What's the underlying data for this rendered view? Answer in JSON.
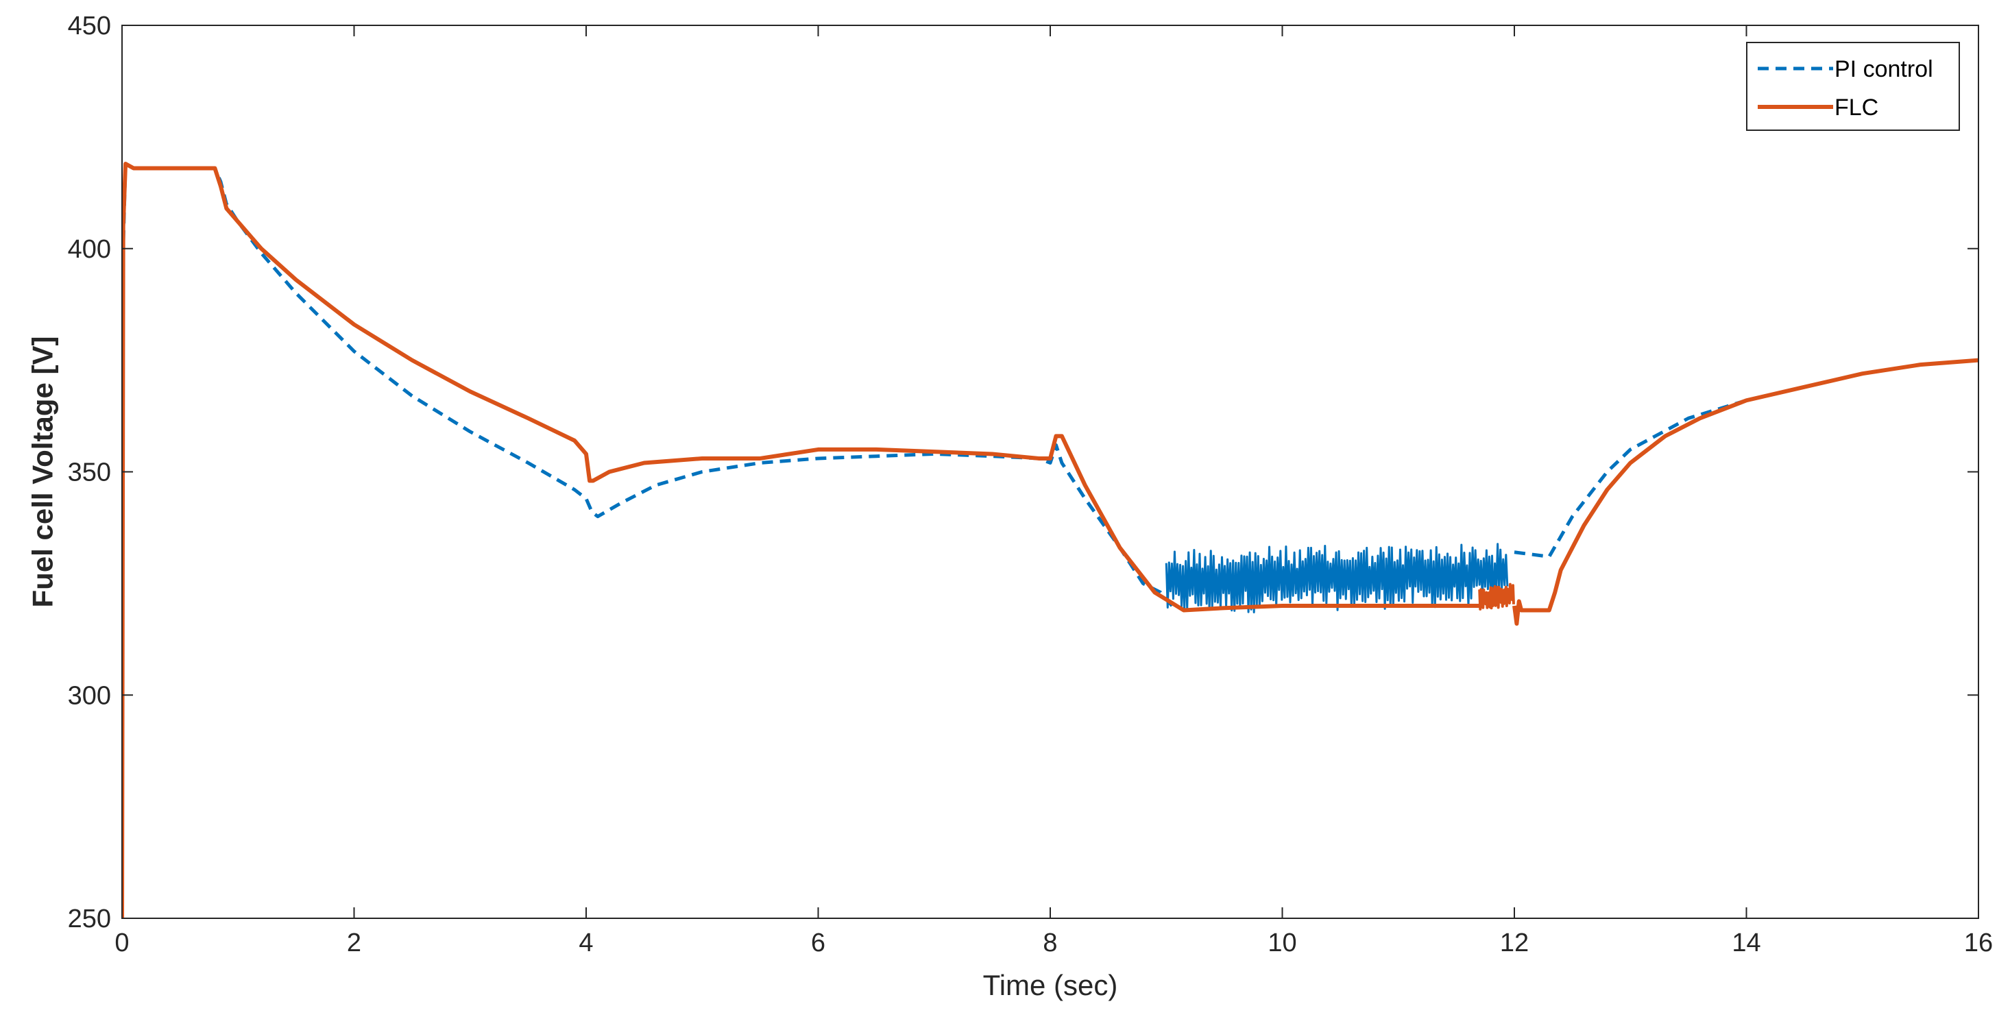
{
  "chart_data": {
    "type": "line",
    "xlabel": "Time (sec)",
    "ylabel": "Fuel cell Voltage [V]",
    "xlim": [
      0,
      16
    ],
    "ylim": [
      250,
      450
    ],
    "xticks": [
      0,
      2,
      4,
      6,
      8,
      10,
      12,
      14,
      16
    ],
    "yticks": [
      250,
      300,
      350,
      400,
      450
    ],
    "grid": false,
    "legend_position": "top-right",
    "series": [
      {
        "name": "PI control",
        "color": "#0072BD",
        "style": "dashed",
        "x": [
          0,
          0.01,
          0.03,
          0.1,
          0.3,
          0.6,
          0.8,
          0.85,
          0.9,
          1.0,
          1.2,
          1.5,
          2.0,
          2.5,
          3.0,
          3.5,
          3.9,
          4.0,
          4.05,
          4.1,
          4.3,
          4.6,
          5.0,
          5.5,
          6.0,
          6.5,
          7.0,
          7.5,
          7.9,
          8.0,
          8.05,
          8.1,
          8.3,
          8.6,
          8.8,
          8.95,
          9.05
        ],
        "values": [
          250,
          400,
          419,
          418,
          418,
          418,
          418,
          415,
          410,
          406,
          399,
          390,
          377,
          367,
          359,
          352,
          346,
          344,
          341,
          340,
          343,
          347,
          350,
          352,
          353,
          353.5,
          354,
          353.5,
          353,
          352,
          356,
          352,
          344,
          333,
          325,
          323,
          320
        ],
        "noise_band": {
          "x": [
            9.0,
            11.95
          ],
          "low": [
            318,
            320
          ],
          "high": [
            333,
            334
          ]
        },
        "tail_x": [
          12.0,
          12.3,
          12.5,
          12.8,
          13.0,
          13.5,
          14.0,
          14.5,
          15.0,
          15.5,
          16.0
        ],
        "tail_values": [
          332,
          331,
          340,
          350,
          355,
          362,
          366,
          369,
          372,
          374,
          375
        ]
      },
      {
        "name": "FLC",
        "color": "#D95319",
        "style": "solid",
        "x": [
          0,
          0.01,
          0.03,
          0.1,
          0.3,
          0.6,
          0.8,
          0.85,
          0.9,
          1.0,
          1.2,
          1.5,
          2.0,
          2.5,
          3.0,
          3.5,
          3.9,
          4.0,
          4.03,
          4.06,
          4.2,
          4.5,
          5.0,
          5.5,
          6.0,
          6.5,
          7.0,
          7.5,
          7.9,
          8.0,
          8.05,
          8.1,
          8.3,
          8.6,
          8.9,
          9.15,
          9.5,
          10.0,
          10.5,
          11.0,
          11.5,
          11.7
        ],
        "values": [
          250,
          405,
          419,
          418,
          418,
          418,
          418,
          414,
          409,
          406,
          400,
          393,
          383,
          375,
          368,
          362,
          357,
          354,
          348,
          348,
          350,
          352,
          353,
          353,
          355,
          355,
          354.5,
          354,
          353,
          353,
          358,
          358,
          347,
          333,
          323,
          319,
          319.5,
          320,
          320,
          320,
          320,
          320
        ],
        "burst": {
          "x": [
            11.7,
            12.0
          ],
          "low": [
            319,
            320
          ],
          "high": [
            324,
            325
          ]
        },
        "tail_x": [
          12.0,
          12.02,
          12.04,
          12.06,
          12.1,
          12.3,
          12.35,
          12.4,
          12.6,
          12.8,
          13.0,
          13.3,
          13.6,
          14.0,
          14.5,
          15.0,
          15.5,
          16.0
        ],
        "tail_values": [
          320,
          316,
          321,
          319,
          319,
          319,
          323,
          328,
          338,
          346,
          352,
          358,
          362,
          366,
          369,
          372,
          374,
          375
        ]
      }
    ]
  }
}
